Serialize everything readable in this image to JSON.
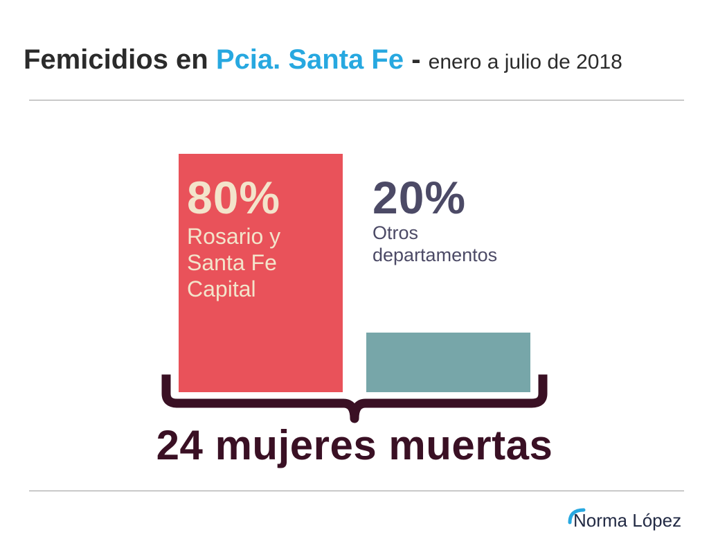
{
  "header": {
    "title_part1": "Femicidios en ",
    "title_accent": "Pcia. Santa Fe",
    "title_sep": " - ",
    "title_range": "enero a julio de 2018"
  },
  "chart_data": {
    "type": "bar",
    "title": "Femicidios en Pcia. Santa Fe - enero a julio de 2018",
    "categories": [
      "Rosario y Santa Fe Capital",
      "Otros departamentos"
    ],
    "values": [
      80,
      20
    ],
    "value_labels": [
      "80%",
      "20%"
    ],
    "desc_lines": [
      [
        "Rosario y",
        "Santa Fe",
        "Capital"
      ],
      [
        "Otros",
        "departamentos"
      ]
    ],
    "unit": "%",
    "ylim": [
      0,
      100
    ],
    "grid": false,
    "legend": "none",
    "total_label": "24 mujeres muertas",
    "colors": [
      "#e9525a",
      "#77a6a9"
    ],
    "label_colors": [
      "#f3e4cb",
      "#4c4a66"
    ],
    "brace_color": "#3a1024"
  },
  "footer": {
    "brand": "Norma López",
    "brand_color": "#222a44",
    "brand_mark_color": "#27a8e0"
  }
}
